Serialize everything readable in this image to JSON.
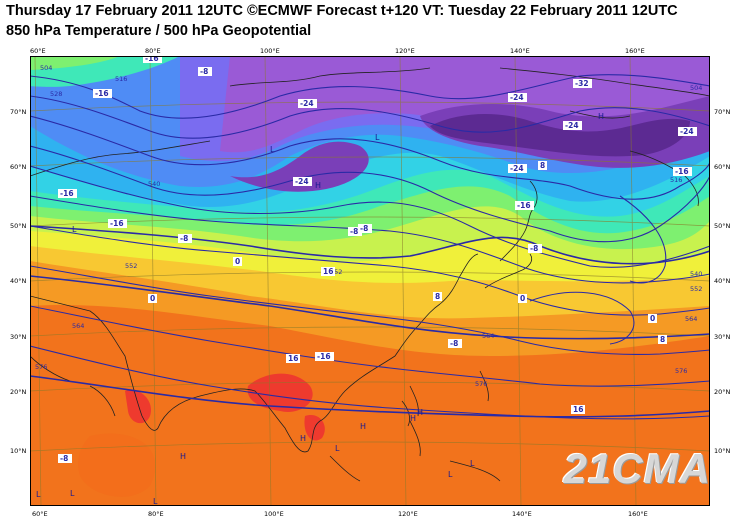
{
  "title_line1": "Thursday 17 February 2011 12UTC ©ECMWF Forecast t+120 VT: Tuesday 22 February 2011 12UTC",
  "title_line2": "850 hPa Temperature / 500 hPa Geopotential",
  "top_axis": [
    "60°E",
    "80°E",
    "100°E",
    "120°E",
    "140°E",
    "160°E"
  ],
  "bottom_axis": [
    "60°E",
    "80°E",
    "100°E",
    "120°E",
    "140°E",
    "160°E"
  ],
  "left_axis": [
    "70°N",
    "60°N",
    "50°N",
    "40°N",
    "30°N",
    "20°N",
    "10°N"
  ],
  "right_axis": [
    "70°N",
    "60°N",
    "50°N",
    "40°N",
    "30°N",
    "20°N",
    "10°N"
  ],
  "watermark": "21CMA",
  "geopotential_labels": [
    "504",
    "516",
    "528",
    "540",
    "552",
    "564",
    "576",
    "504",
    "516",
    "528",
    "540",
    "552",
    "564",
    "576",
    "564",
    "552",
    "576"
  ],
  "temperature_labels": [
    "-16",
    "-8",
    "-16",
    "-24",
    "-24",
    "-24",
    "-32",
    "-24",
    "-16",
    "-8",
    "-16",
    "-8",
    "0",
    "-8",
    "-16",
    "-24",
    "-24",
    "-16",
    "-8",
    "0",
    "8",
    "16",
    "16",
    "-8",
    "0",
    "8",
    "-16",
    "-8",
    "16",
    "8",
    "0"
  ],
  "pressure_labels": [
    "H",
    "L",
    "L",
    "L",
    "H",
    "H",
    "H",
    "H",
    "L",
    "L",
    "L",
    "L",
    "H",
    "L",
    "H",
    "L"
  ],
  "colors": {
    "band_m32": "#5c2a92",
    "band_m28": "#7a3fb8",
    "band_m24": "#9a5ad6",
    "band_m20": "#7a6cf0",
    "band_m16": "#4f8cf5",
    "band_m12": "#2fb2f0",
    "band_m8": "#32d2e6",
    "band_m4": "#3fe8b8",
    "band_0": "#7ef070",
    "band_4": "#c8f24e",
    "band_8": "#f0f03a",
    "band_12": "#f8c832",
    "band_16": "#f59a24",
    "band_20": "#f2731c",
    "band_24": "#ee3a2e",
    "contour": "#2a2aa6",
    "coast": "#222222"
  }
}
